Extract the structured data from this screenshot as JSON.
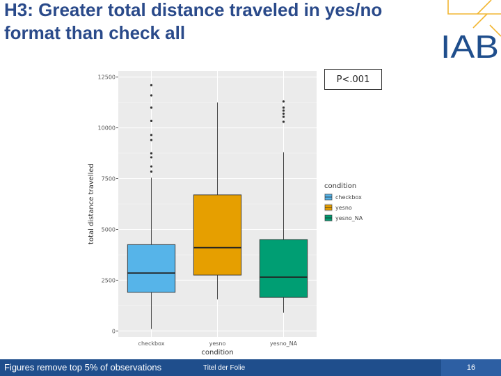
{
  "slide": {
    "title": "H3: Greater total distance traveled in yes/no format than check all",
    "logo_text": "IAB",
    "pvalue_box": "P<.001",
    "footer_note": "Figures remove top 5% of observations",
    "footer_center": "Titel der Folie",
    "page_number": "16"
  },
  "colors": {
    "title": "#2a4a8a",
    "footer_bar": "#1f4e8c",
    "logo_yellow": "#f2b632",
    "logo_blue": "#1f4e8c"
  },
  "chart_data": {
    "type": "boxplot",
    "xlabel": "condition",
    "ylabel": "total distance travelled",
    "ylim": [
      -300,
      12800
    ],
    "yticks": [
      0,
      2500,
      5000,
      7500,
      10000,
      12500
    ],
    "ytick_labels": [
      "0",
      "2500",
      "5000",
      "7500",
      "10000",
      "12500"
    ],
    "categories": [
      "checkbox",
      "yesno",
      "yesno_NA"
    ],
    "colors": [
      "#56b4e9",
      "#e69f00",
      "#009e73"
    ],
    "boxes": [
      {
        "name": "checkbox",
        "min": 100,
        "q1": 1900,
        "median": 2850,
        "q3": 4250,
        "max": 7550,
        "outliers": [
          7850,
          8100,
          8550,
          8750,
          9400,
          9650,
          10350,
          11000,
          11600,
          12100
        ]
      },
      {
        "name": "yesno",
        "min": 1550,
        "q1": 2750,
        "median": 4100,
        "q3": 6700,
        "max": 11250,
        "outliers": []
      },
      {
        "name": "yesno_NA",
        "min": 900,
        "q1": 1650,
        "median": 2650,
        "q3": 4500,
        "max": 8800,
        "outliers": [
          10300,
          10550,
          10700,
          10850,
          11000,
          11300
        ]
      }
    ],
    "legend": {
      "title": "condition",
      "entries": [
        "checkbox",
        "yesno",
        "yesno_NA"
      ],
      "placement": "right"
    },
    "grid": true
  }
}
